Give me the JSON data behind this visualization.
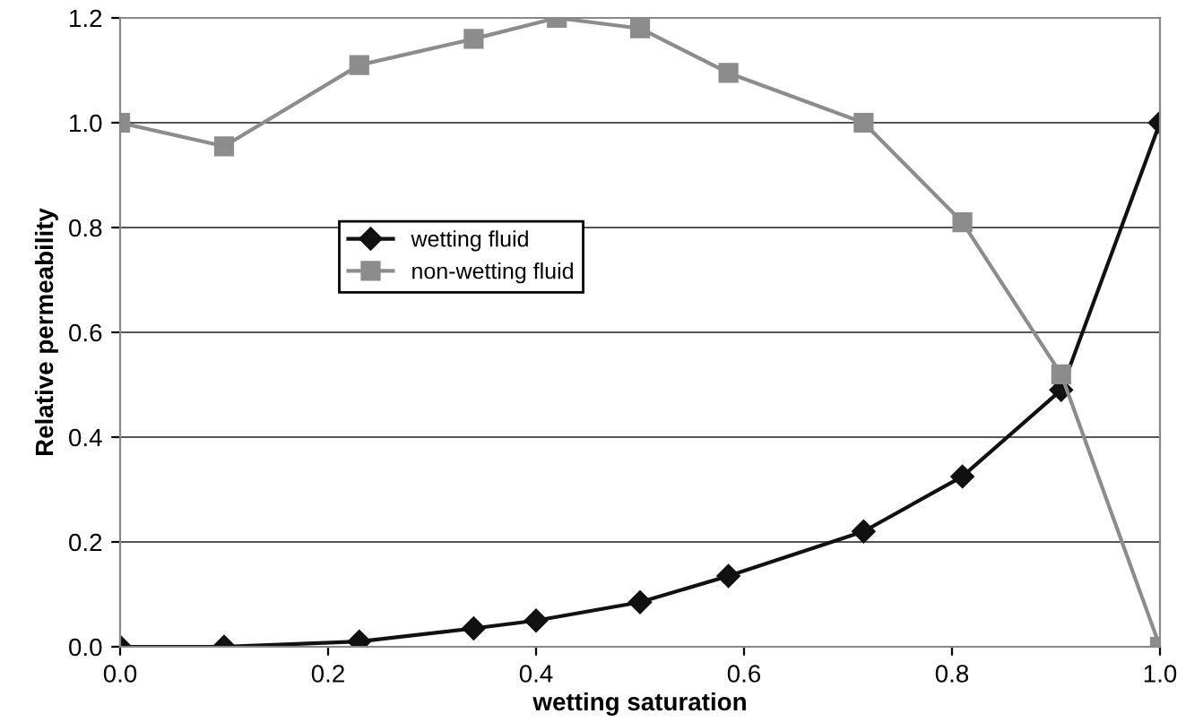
{
  "chart_data": {
    "type": "line",
    "xlabel": "wetting saturation",
    "ylabel": "Relative permeability",
    "xlim": [
      0,
      1
    ],
    "xticks": [
      {
        "value": 0,
        "label": "0.0"
      },
      {
        "value": 0.2,
        "label": "0.2"
      },
      {
        "value": 0.4,
        "label": "0.4"
      },
      {
        "value": 0.6,
        "label": "0.6"
      },
      {
        "value": 0.8,
        "label": "0.8"
      },
      {
        "value": 1,
        "label": "1.0"
      }
    ],
    "ylim": [
      0,
      1.2
    ],
    "yticks": [
      {
        "value": 0,
        "label": "0.0"
      },
      {
        "value": 0.2,
        "label": "0.2"
      },
      {
        "value": 0.4,
        "label": "0.4"
      },
      {
        "value": 0.6,
        "label": "0.6"
      },
      {
        "value": 0.8,
        "label": "0.8"
      },
      {
        "value": 1,
        "label": "1.0"
      },
      {
        "value": 1.2,
        "label": "1.2"
      }
    ],
    "grid": "y",
    "legend": "center",
    "series": [
      {
        "name": "wetting fluid",
        "color": "#111111",
        "marker": "diamond",
        "x": [
          0,
          0.1,
          0.23,
          0.34,
          0.4,
          0.5,
          0.585,
          0.715,
          0.81,
          0.905,
          1.0
        ],
        "values": [
          0,
          0,
          0.01,
          0.035,
          0.05,
          0.085,
          0.135,
          0.22,
          0.325,
          0.49,
          1.0
        ]
      },
      {
        "name": "non-wetting fluid",
        "color": "#8c8c8c",
        "marker": "square",
        "x": [
          0,
          0.1,
          0.23,
          0.34,
          0.42,
          0.5,
          0.585,
          0.715,
          0.81,
          0.905,
          1.0
        ],
        "values": [
          1.0,
          0.955,
          1.11,
          1.16,
          1.2,
          1.18,
          1.095,
          1.0,
          0.81,
          0.52,
          0.0
        ]
      }
    ]
  }
}
